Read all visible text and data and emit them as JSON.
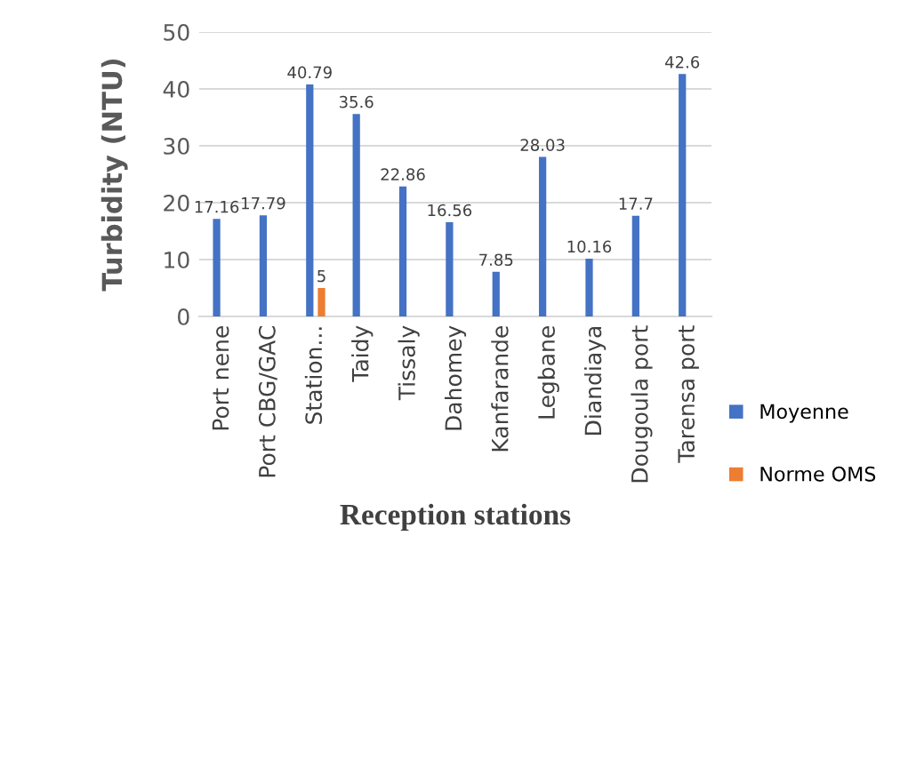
{
  "chart_data": {
    "type": "bar",
    "xlabel": "Reception stations",
    "ylabel": "Turbidity (NTU)",
    "categories": [
      "Port nene",
      "Port CBG/GAC",
      "Station...",
      "Taidy",
      "Tissaly",
      "Dahomey",
      "Kanfarande",
      "Legbane",
      "Diandiaya",
      "Dougoula port",
      "Tarensa port"
    ],
    "series": [
      {
        "name": "Moyenne",
        "color": "#4472c4",
        "values": [
          17.16,
          17.79,
          40.79,
          35.6,
          22.86,
          16.56,
          7.85,
          28.03,
          10.16,
          17.7,
          42.6
        ]
      },
      {
        "name": "Norme OMS",
        "color": "#ed7d31",
        "values": [
          null,
          null,
          5,
          null,
          null,
          null,
          null,
          null,
          null,
          null,
          null
        ]
      }
    ],
    "ylim": [
      0,
      50
    ],
    "yticks": [
      0,
      10,
      20,
      30,
      40,
      50
    ],
    "grid": "y",
    "legend": "right",
    "data_labels": true
  }
}
